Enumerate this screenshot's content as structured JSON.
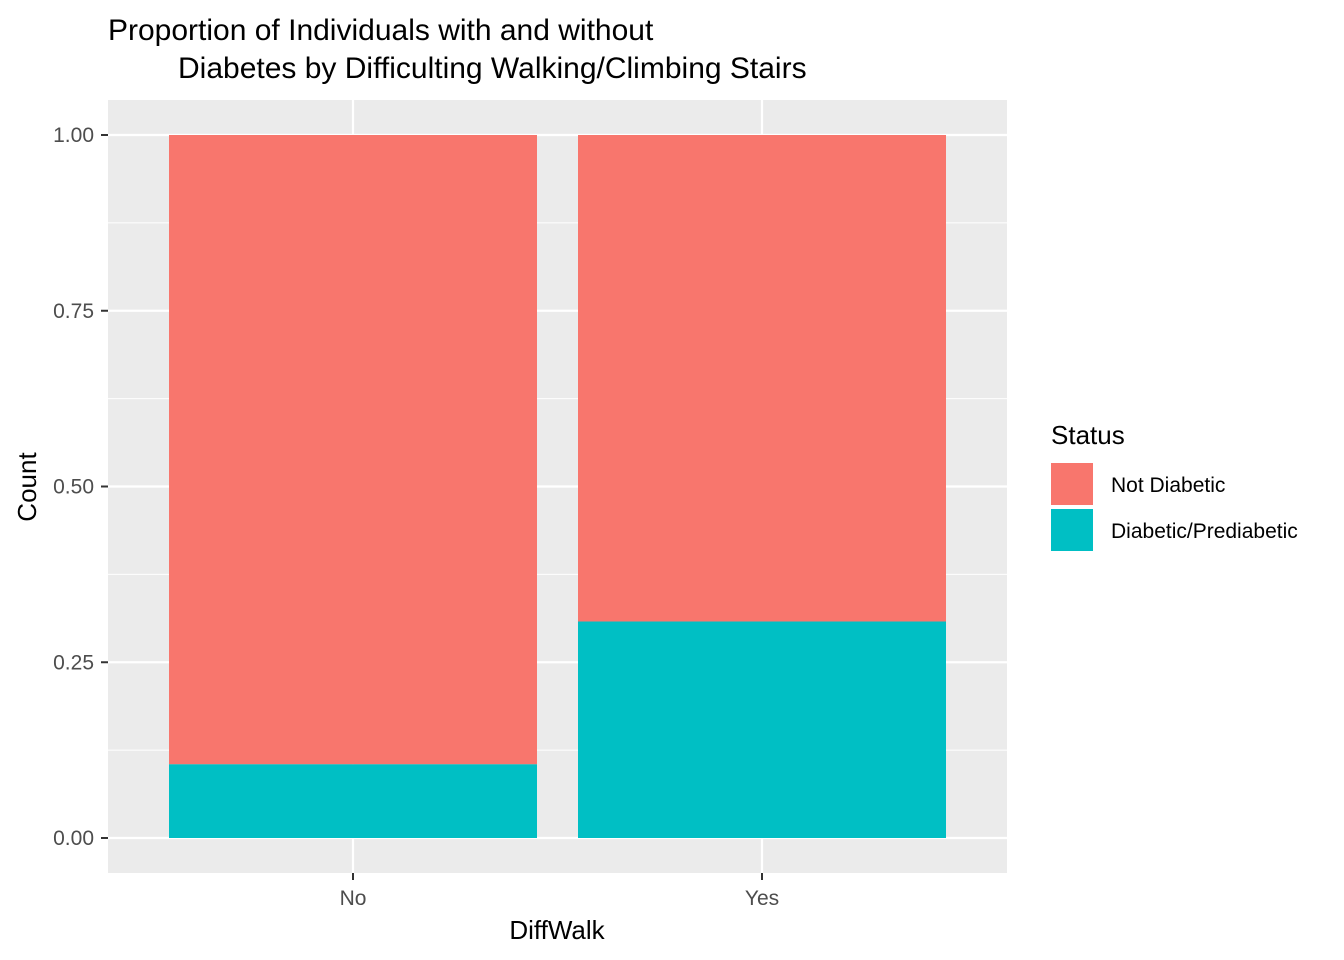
{
  "chart_data": {
    "type": "bar",
    "stacked": true,
    "title_lines": [
      "Proportion of Individuals with and without",
      "Diabetes by Difficulting Walking/Climbing Stairs"
    ],
    "xlabel": "DiffWalk",
    "ylabel": "Count",
    "categories": [
      "No",
      "Yes"
    ],
    "y_ticks": [
      "0.00",
      "0.25",
      "0.50",
      "0.75",
      "1.00"
    ],
    "ylim": [
      0,
      1
    ],
    "grid": true,
    "series": [
      {
        "name": "Diabetic/Prediabetic",
        "values": [
          0.105,
          0.308
        ],
        "color": "#00BFC4"
      },
      {
        "name": "Not Diabetic",
        "values": [
          0.895,
          0.692
        ],
        "color": "#F8766D"
      }
    ],
    "legend": {
      "title": "Status",
      "position": "right",
      "entries": [
        {
          "label": "Not Diabetic",
          "color": "#F8766D"
        },
        {
          "label": "Diabetic/Prediabetic",
          "color": "#00BFC4"
        }
      ]
    },
    "panel_background": "#EBEBEB",
    "grid_color": "#FFFFFF"
  }
}
